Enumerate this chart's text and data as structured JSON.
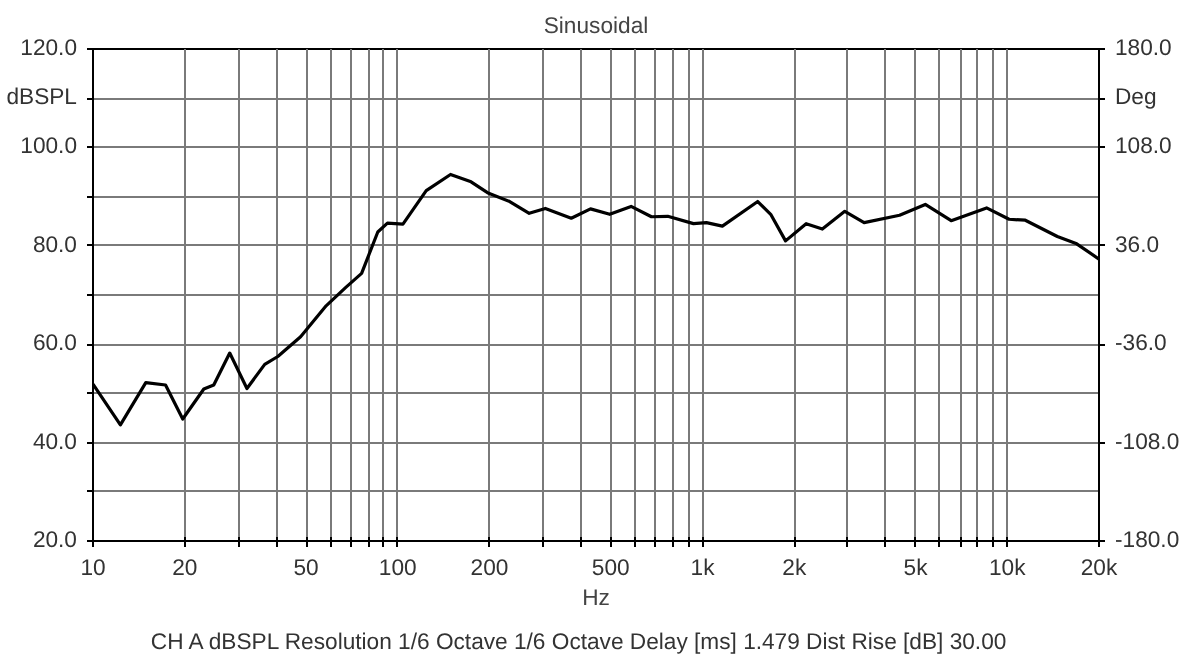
{
  "chart_data": {
    "type": "line",
    "title": "Sinusoidal",
    "xlabel": "Hz",
    "ylabel": "dBSPL",
    "y2label": "Deg",
    "annotations": [
      "CH A  dBSPL  Resolution 1/6 Octave  1/6 Octave  Delay [ms] 1.479  Dist Rise [dB] 30.00"
    ],
    "log": "x",
    "grid": true,
    "marker": "none",
    "line_style": "solid",
    "xlim": [
      10,
      20000
    ],
    "xticks": [
      10,
      20,
      {
        "value": 30,
        "label": null
      },
      {
        "value": 40,
        "label": null
      },
      50,
      {
        "value": 60,
        "label": null
      },
      {
        "value": 70,
        "label": null
      },
      {
        "value": 80,
        "label": null
      },
      {
        "value": 90,
        "label": null
      },
      100,
      200,
      {
        "value": 300,
        "label": null
      },
      {
        "value": 400,
        "label": null
      },
      500,
      {
        "value": 600,
        "label": null
      },
      {
        "value": 700,
        "label": null
      },
      {
        "value": 800,
        "label": null
      },
      {
        "value": 900,
        "label": null
      },
      {
        "value": 1000,
        "label": "1k"
      },
      {
        "value": 2000,
        "label": "2k"
      },
      {
        "value": 3000,
        "label": null
      },
      {
        "value": 4000,
        "label": null
      },
      {
        "value": 5000,
        "label": "5k"
      },
      {
        "value": 6000,
        "label": null
      },
      {
        "value": 7000,
        "label": null
      },
      {
        "value": 8000,
        "label": null
      },
      {
        "value": 9000,
        "label": null
      },
      {
        "value": 10000,
        "label": "10k"
      },
      {
        "value": 20000,
        "label": "20k"
      }
    ],
    "ylim": [
      20,
      120
    ],
    "yticks": [
      {
        "value": 20,
        "label": "20.0"
      },
      {
        "value": 30,
        "label": null
      },
      {
        "value": 40,
        "label": "40.0"
      },
      {
        "value": 50,
        "label": null
      },
      {
        "value": 60,
        "label": "60.0"
      },
      {
        "value": 70,
        "label": null
      },
      {
        "value": 80,
        "label": "80.0"
      },
      {
        "value": 90,
        "label": null
      },
      {
        "value": 100,
        "label": "100.0"
      },
      {
        "value": 110,
        "label": null
      },
      {
        "value": 120,
        "label": "120.0"
      }
    ],
    "y2lim": [
      -180,
      180
    ],
    "y2ticks": [
      {
        "value": -180,
        "label": "-180.0"
      },
      {
        "value": -108,
        "label": "-108.0"
      },
      {
        "value": -36,
        "label": "-36.0"
      },
      {
        "value": 36,
        "label": "36.0"
      },
      {
        "value": 108,
        "label": "108.0"
      },
      {
        "value": 180,
        "label": "180.0"
      }
    ],
    "x": [
      10,
      12.3,
      14.9,
      17.3,
      19.7,
      23.1,
      24.9,
      28.1,
      32,
      36.6,
      40.4,
      48,
      58.2,
      67.4,
      76.1,
      86,
      92.5,
      104,
      124,
      149,
      174,
      197,
      233,
      270,
      305,
      371,
      429,
      496,
      583,
      680,
      769,
      934,
      1030,
      1162,
      1518,
      1674,
      1873,
      2188,
      2473,
      2930,
      3391,
      4433,
      5383,
      6546,
      8554,
      10140,
      11460,
      14600,
      16900,
      20000
    ],
    "series": [
      {
        "color": "#000000",
        "values": [
          51.9,
          43.6,
          52.2,
          51.7,
          44.8,
          50.9,
          51.7,
          58.2,
          51.0,
          55.9,
          57.5,
          61.5,
          67.8,
          71.5,
          74.4,
          82.8,
          84.6,
          84.4,
          91.2,
          94.5,
          93.0,
          90.8,
          89.0,
          86.6,
          87.6,
          85.6,
          87.5,
          86.4,
          88.0,
          85.9,
          86.0,
          84.5,
          84.7,
          84.0,
          89.0,
          86.4,
          81.0,
          84.5,
          83.4,
          87.0,
          84.7,
          86.2,
          88.4,
          85.1,
          87.7,
          85.4,
          85.2,
          81.9,
          80.4,
          77.3
        ]
      }
    ]
  }
}
